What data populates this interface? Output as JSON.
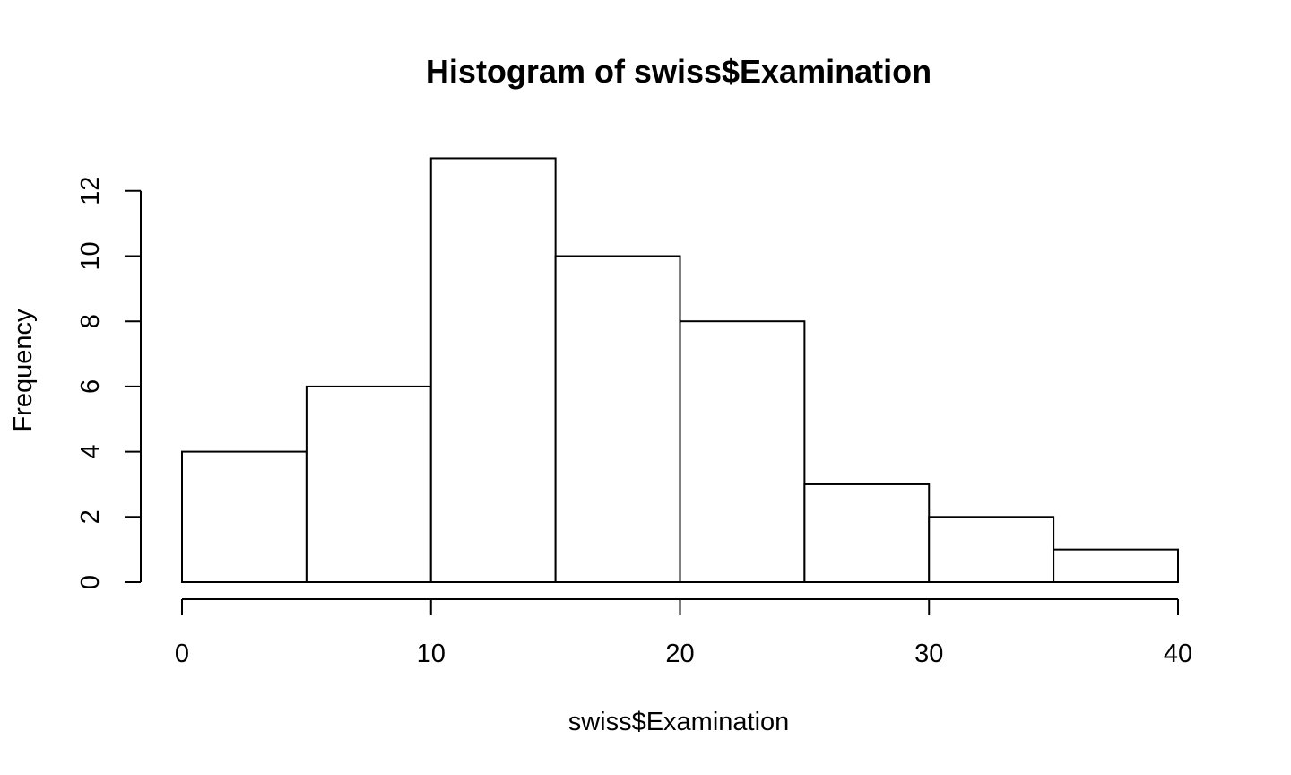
{
  "chart_data": {
    "type": "bar",
    "title": "Histogram of swiss$Examination",
    "xlabel": "swiss$Examination",
    "ylabel": "Frequency",
    "bins": [
      {
        "start": 0,
        "end": 5,
        "count": 4
      },
      {
        "start": 5,
        "end": 10,
        "count": 6
      },
      {
        "start": 10,
        "end": 15,
        "count": 13
      },
      {
        "start": 15,
        "end": 20,
        "count": 10
      },
      {
        "start": 20,
        "end": 25,
        "count": 8
      },
      {
        "start": 25,
        "end": 30,
        "count": 3
      },
      {
        "start": 30,
        "end": 35,
        "count": 2
      },
      {
        "start": 35,
        "end": 40,
        "count": 1
      }
    ],
    "xlim": [
      0,
      40
    ],
    "ylim": [
      0,
      13
    ],
    "x_ticks": [
      0,
      10,
      20,
      30,
      40
    ],
    "y_ticks": [
      0,
      2,
      4,
      6,
      8,
      10,
      12
    ],
    "grid": false,
    "bar_fill": "#ffffff",
    "bar_stroke": "#000000"
  }
}
